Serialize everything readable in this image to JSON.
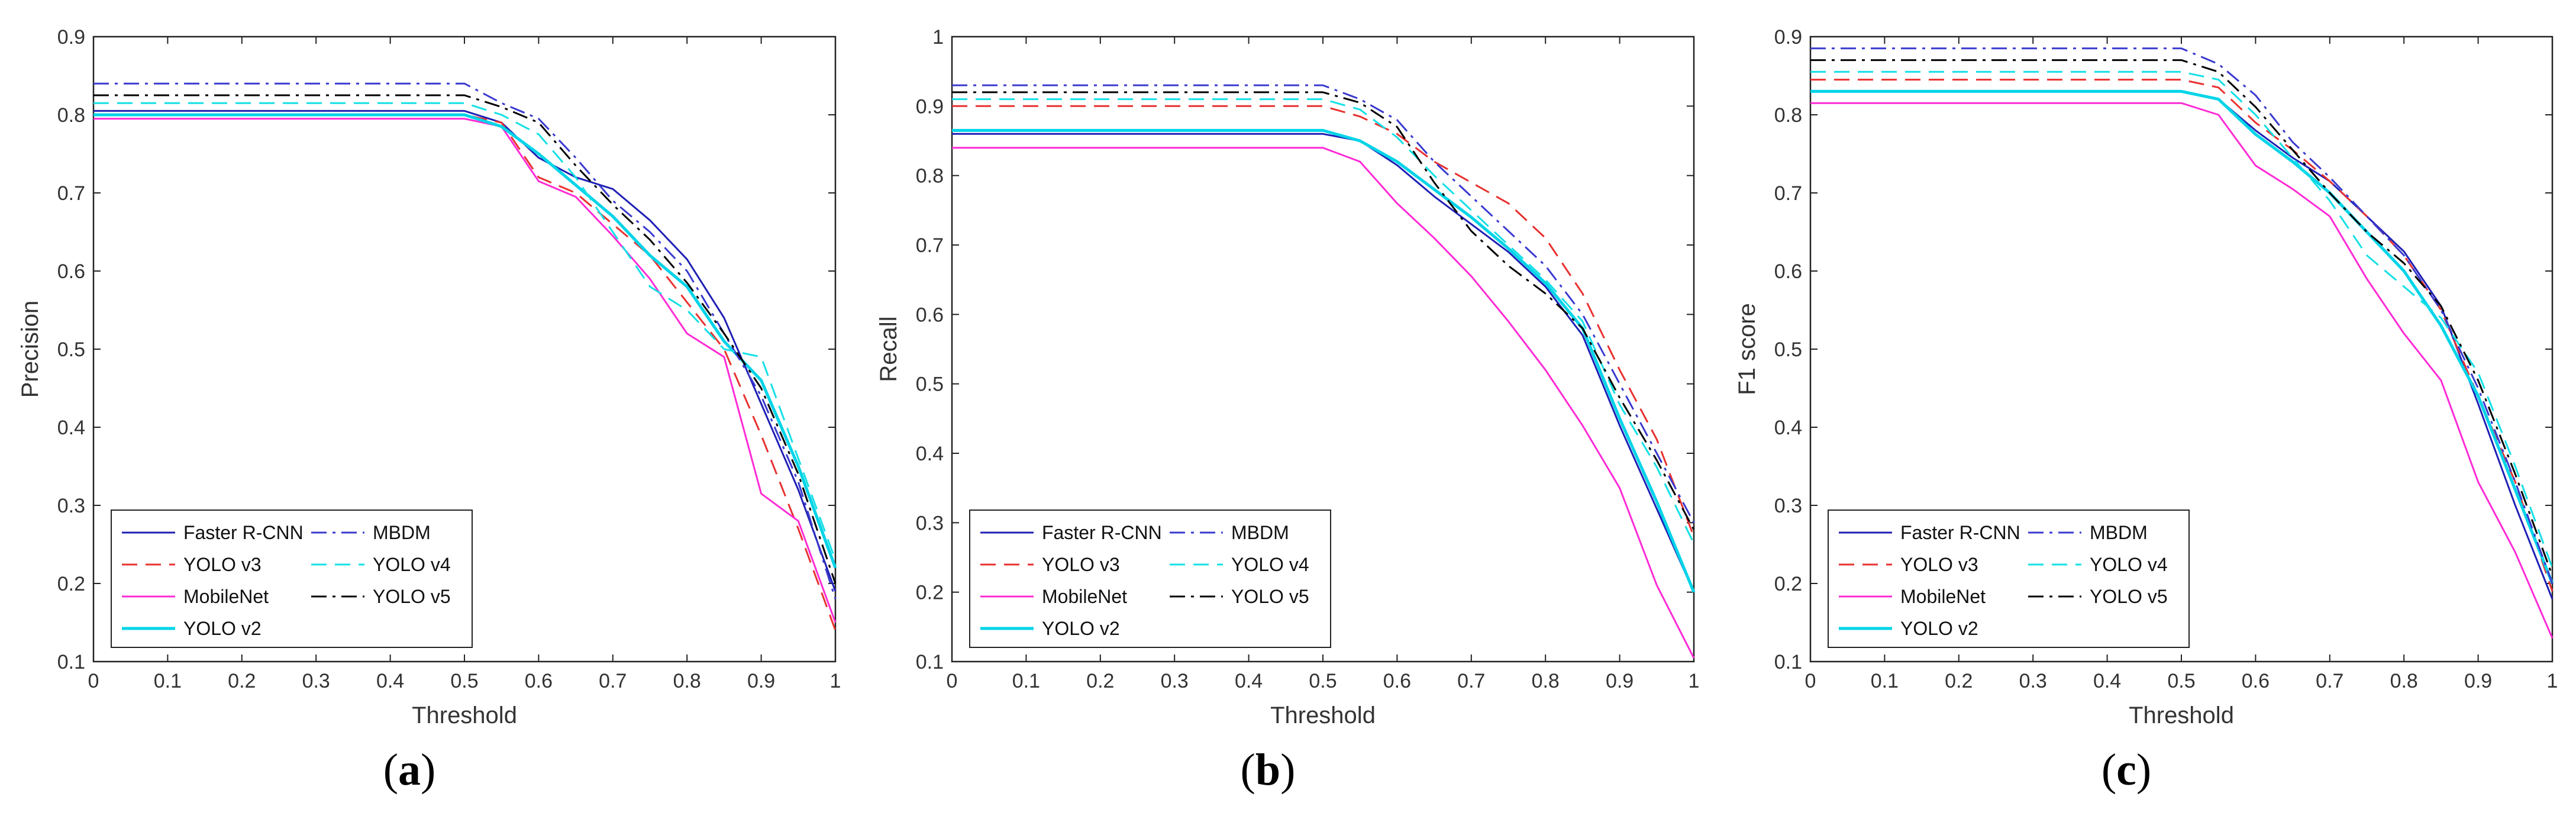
{
  "colors": {
    "faster_rcnn": "#1f1fb4",
    "yolo_v3": "#e8312f",
    "mobilenet": "#ff2bd6",
    "yolo_v2": "#00d4e8",
    "mbdm": "#3a3ad0",
    "yolo_v4": "#14e0e6",
    "yolo_v5": "#000000"
  },
  "chart_data": [
    {
      "type": "line",
      "caption": "a",
      "xlabel": "Threshold",
      "ylabel": "Precision",
      "xlim": [
        0,
        1
      ],
      "ylim": [
        0.1,
        0.9
      ],
      "xticks": [
        "0",
        "0.1",
        "0.2",
        "0.3",
        "0.4",
        "0.5",
        "0.6",
        "0.7",
        "0.8",
        "0.9",
        "1"
      ],
      "yticks": [
        "0.1",
        "0.2",
        "0.3",
        "0.4",
        "0.5",
        "0.6",
        "0.7",
        "0.8",
        "0.9"
      ],
      "legend": "bottom-left",
      "x": [
        0,
        0.5,
        0.55,
        0.6,
        0.65,
        0.7,
        0.75,
        0.8,
        0.85,
        0.9,
        0.95,
        1
      ],
      "series": [
        {
          "name": "Faster R-CNN",
          "key": "faster_rcnn",
          "values": [
            0.805,
            0.805,
            0.79,
            0.745,
            0.72,
            0.705,
            0.665,
            0.615,
            0.54,
            0.43,
            0.32,
            0.19
          ]
        },
        {
          "name": "YOLO v3",
          "key": "yolo_v3",
          "values": [
            0.8,
            0.8,
            0.79,
            0.72,
            0.7,
            0.66,
            0.62,
            0.56,
            0.5,
            0.39,
            0.27,
            0.14
          ]
        },
        {
          "name": "MobileNet",
          "key": "mobilenet",
          "values": [
            0.795,
            0.795,
            0.785,
            0.715,
            0.695,
            0.645,
            0.59,
            0.52,
            0.49,
            0.315,
            0.28,
            0.15
          ]
        },
        {
          "name": "YOLO v2",
          "key": "yolo_v2",
          "values": [
            0.8,
            0.8,
            0.785,
            0.75,
            0.71,
            0.67,
            0.62,
            0.58,
            0.51,
            0.46,
            0.35,
            0.22
          ]
        },
        {
          "name": "MBDM",
          "key": "mbdm",
          "values": [
            0.84,
            0.84,
            0.815,
            0.795,
            0.745,
            0.69,
            0.65,
            0.6,
            0.52,
            0.44,
            0.33,
            0.18
          ]
        },
        {
          "name": "YOLO v4",
          "key": "yolo_v4",
          "values": [
            0.815,
            0.815,
            0.8,
            0.775,
            0.72,
            0.65,
            0.58,
            0.55,
            0.5,
            0.49,
            0.36,
            0.23
          ]
        },
        {
          "name": "YOLO v5",
          "key": "yolo_v5",
          "values": [
            0.825,
            0.825,
            0.81,
            0.79,
            0.735,
            0.685,
            0.64,
            0.585,
            0.52,
            0.45,
            0.34,
            0.2
          ]
        }
      ]
    },
    {
      "type": "line",
      "caption": "b",
      "xlabel": "Threshold",
      "ylabel": "Recall",
      "xlim": [
        0,
        1
      ],
      "ylim": [
        0.1,
        1
      ],
      "xticks": [
        "0",
        "0.1",
        "0.2",
        "0.3",
        "0.4",
        "0.5",
        "0.6",
        "0.7",
        "0.8",
        "0.9",
        "1"
      ],
      "yticks": [
        "0.1",
        "0.2",
        "0.3",
        "0.4",
        "0.5",
        "0.6",
        "0.7",
        "0.8",
        "0.9",
        "1"
      ],
      "legend": "bottom-left",
      "x": [
        0,
        0.5,
        0.55,
        0.6,
        0.65,
        0.7,
        0.75,
        0.8,
        0.85,
        0.9,
        0.95,
        1
      ],
      "series": [
        {
          "name": "Faster R-CNN",
          "key": "faster_rcnn",
          "values": [
            0.86,
            0.86,
            0.85,
            0.815,
            0.77,
            0.73,
            0.69,
            0.64,
            0.57,
            0.44,
            0.32,
            0.2
          ]
        },
        {
          "name": "YOLO v3",
          "key": "yolo_v3",
          "values": [
            0.9,
            0.9,
            0.885,
            0.86,
            0.82,
            0.79,
            0.76,
            0.71,
            0.63,
            0.52,
            0.42,
            0.28
          ]
        },
        {
          "name": "MobileNet",
          "key": "mobilenet",
          "values": [
            0.84,
            0.84,
            0.82,
            0.76,
            0.71,
            0.655,
            0.59,
            0.52,
            0.44,
            0.35,
            0.21,
            0.105
          ]
        },
        {
          "name": "YOLO v2",
          "key": "yolo_v2",
          "values": [
            0.865,
            0.865,
            0.85,
            0.82,
            0.78,
            0.74,
            0.695,
            0.645,
            0.58,
            0.45,
            0.33,
            0.2
          ]
        },
        {
          "name": "MBDM",
          "key": "mbdm",
          "values": [
            0.93,
            0.93,
            0.91,
            0.88,
            0.82,
            0.77,
            0.72,
            0.67,
            0.6,
            0.5,
            0.4,
            0.3
          ]
        },
        {
          "name": "YOLO v4",
          "key": "yolo_v4",
          "values": [
            0.91,
            0.91,
            0.895,
            0.855,
            0.8,
            0.75,
            0.7,
            0.65,
            0.59,
            0.47,
            0.38,
            0.27
          ]
        },
        {
          "name": "YOLO v5",
          "key": "yolo_v5",
          "values": [
            0.92,
            0.92,
            0.905,
            0.87,
            0.79,
            0.72,
            0.67,
            0.63,
            0.58,
            0.48,
            0.39,
            0.29
          ]
        }
      ]
    },
    {
      "type": "line",
      "caption": "c",
      "xlabel": "Threshold",
      "ylabel": "F1 score",
      "xlim": [
        0,
        1
      ],
      "ylim": [
        0.1,
        0.9
      ],
      "xticks": [
        "0",
        "0.1",
        "0.2",
        "0.3",
        "0.4",
        "0.5",
        "0.6",
        "0.7",
        "0.8",
        "0.9",
        "1"
      ],
      "yticks": [
        "0.1",
        "0.2",
        "0.3",
        "0.4",
        "0.5",
        "0.6",
        "0.7",
        "0.8",
        "0.9"
      ],
      "legend": "bottom-left",
      "x": [
        0,
        0.5,
        0.55,
        0.6,
        0.65,
        0.7,
        0.75,
        0.8,
        0.85,
        0.9,
        0.95,
        1
      ],
      "series": [
        {
          "name": "Faster R-CNN",
          "key": "faster_rcnn",
          "values": [
            0.83,
            0.83,
            0.82,
            0.78,
            0.745,
            0.715,
            0.67,
            0.625,
            0.555,
            0.43,
            0.3,
            0.18
          ]
        },
        {
          "name": "YOLO v3",
          "key": "yolo_v3",
          "values": [
            0.845,
            0.845,
            0.835,
            0.79,
            0.755,
            0.715,
            0.67,
            0.62,
            0.55,
            0.44,
            0.33,
            0.19
          ]
        },
        {
          "name": "MobileNet",
          "key": "mobilenet",
          "values": [
            0.815,
            0.815,
            0.8,
            0.735,
            0.705,
            0.67,
            0.59,
            0.52,
            0.46,
            0.33,
            0.24,
            0.13
          ]
        },
        {
          "name": "YOLO v2",
          "key": "yolo_v2",
          "values": [
            0.83,
            0.83,
            0.82,
            0.775,
            0.74,
            0.7,
            0.65,
            0.6,
            0.53,
            0.44,
            0.32,
            0.2
          ]
        },
        {
          "name": "MBDM",
          "key": "mbdm",
          "values": [
            0.885,
            0.885,
            0.865,
            0.825,
            0.765,
            0.72,
            0.67,
            0.62,
            0.55,
            0.45,
            0.33,
            0.2
          ]
        },
        {
          "name": "YOLO v4",
          "key": "yolo_v4",
          "values": [
            0.855,
            0.855,
            0.845,
            0.8,
            0.745,
            0.69,
            0.62,
            0.58,
            0.54,
            0.47,
            0.35,
            0.22
          ]
        },
        {
          "name": "YOLO v5",
          "key": "yolo_v5",
          "values": [
            0.87,
            0.87,
            0.855,
            0.81,
            0.755,
            0.7,
            0.65,
            0.61,
            0.555,
            0.46,
            0.34,
            0.21
          ]
        }
      ]
    }
  ]
}
